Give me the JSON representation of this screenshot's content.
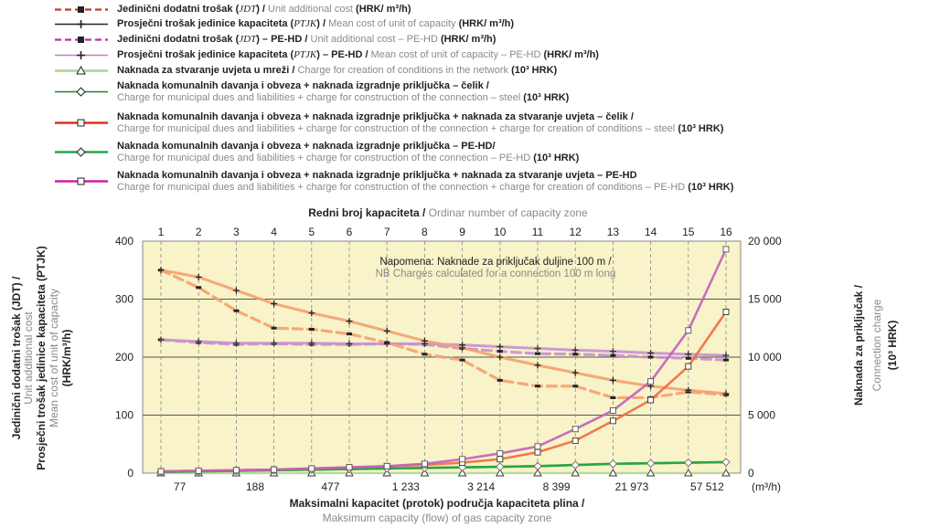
{
  "legend": [
    {
      "id": "jdt-steel",
      "bold": "Jedinični dodatni trošak (",
      "it": "JDT",
      "bold2": ") / ",
      "grey": "Unit additional cost ",
      "unit": "(HRK/ m³/h)",
      "color": "#c0392b",
      "dash": true,
      "marker": "square"
    },
    {
      "id": "ptjk-steel",
      "bold": "Prosječni trošak jedinice kapaciteta (",
      "it": "PTJK",
      "bold2": ") / ",
      "grey": "Mean cost of unit of capacity ",
      "unit": "(HRK/ m³/h)",
      "color": "#222222",
      "dash": false,
      "marker": "plus"
    },
    {
      "id": "jdt-pehd",
      "bold": "Jedinični dodatni trošak (",
      "it": "JDT",
      "bold2": ") – PE-HD / ",
      "grey": "Unit additional cost – PE-HD ",
      "unit": "(HRK/ m³/h)",
      "color": "#c0309a",
      "dash": true,
      "marker": "square"
    },
    {
      "id": "ptjk-pehd",
      "bold": "Prosječni trošak jedinice kapaciteta (",
      "it": "PTJK",
      "bold2": ") – PE-HD / ",
      "grey": "Mean cost of unit of capacity – PE-HD ",
      "unit": "(HRK/ m³/h)",
      "color": "#c080c0",
      "dash": false,
      "marker": "plus"
    },
    {
      "id": "naknada-uvjeti",
      "bold": "Naknada za stvaranje uvjeta u mreži / ",
      "grey": "Charge for creation of conditions in the network ",
      "unit": "(10³ HRK)",
      "color": "#b8dca0",
      "dash": false,
      "marker": "triangle"
    },
    {
      "id": "komunalne-celik",
      "line1": "Naknada komunalnih davanja i obveza + naknada izgradnje priključka – čelik /",
      "line2": "Charge for municipal dues and liabilities + charge for construction of the connection – steel ",
      "unit": "(10³ HRK)",
      "color": "#2e7d32",
      "marker": "diamond"
    },
    {
      "id": "komunalne-uvjeti-celik",
      "line1": "Naknada komunalnih davanja i obveza + naknada izgradnje priključka + naknada za stvaranje uvjeta – čelik /",
      "line2": "Charge for municipal dues and liabilities + charge for construction of the connection + charge for creation of conditions – steel ",
      "unit": "(10³ HRK)",
      "color": "#e0301e",
      "marker": "square"
    },
    {
      "id": "komunalne-pehd",
      "line1": "Naknada komunalnih davanja i obveza + naknada izgradnje priključka – PE-HD/",
      "line2": "Charge for municipal dues and liabilities + charge for construction of the connection – PE-HD ",
      "unit": "(10³ HRK)",
      "color": "#22aa44",
      "marker": "diamond"
    },
    {
      "id": "komunalne-uvjeti-pehd",
      "line1": "Naknada komunalnih davanja i obveza + naknada izgradnje priključka + naknada za stvaranje uvjeta – PE-HD",
      "line2": "Charge for municipal dues and liabilities + charge for construction of the connection + charge for creation of conditions – PE-HD ",
      "unit": "(10³ HRK)",
      "color": "#d020a0",
      "marker": "square"
    }
  ],
  "axes": {
    "top_title_bold": "Redni broj kapaciteta / ",
    "top_title_grey": "Ordinar number of capacity zone",
    "bottom_title": "Maksimalni kapacitet (protok) područja kapaciteta plina /",
    "bottom_title_grey": "Maksimum capacity (flow) of gas capacity zone",
    "bottom_unit": "(m³/h)",
    "left_line1": "Jedinični dodatni trošak (JDT) /",
    "left_line2": "Unit additional cost",
    "left_line3": "Prosječni trošak jedinice kapaciteta (PTJK)",
    "left_line4": "Mean cost of unit of capacity",
    "left_line5": "(HRK/m³/h)",
    "right_line1": "Naknada za priključak /",
    "right_line2": "Connection charge",
    "right_line3": "(10³ HRK)"
  },
  "note": {
    "line1": "Napomena: Naknade za priključak duljine 100 m /",
    "line2": "NB Charges calculated for a connection 100 m long"
  },
  "chart_data": {
    "type": "line",
    "x": [
      1,
      2,
      3,
      4,
      5,
      6,
      7,
      8,
      9,
      10,
      11,
      12,
      13,
      14,
      15,
      16
    ],
    "top_ticks": [
      "1",
      "2",
      "3",
      "4",
      "5",
      "6",
      "7",
      "8",
      "9",
      "10",
      "11",
      "12",
      "13",
      "14",
      "15",
      "16"
    ],
    "bottom_ticks": [
      "77",
      "188",
      "477",
      "1 233",
      "3 214",
      "8 399",
      "21 973",
      "57 512"
    ],
    "left_ticks": [
      "0",
      "100",
      "200",
      "300",
      "400"
    ],
    "right_ticks": [
      "0",
      "5 000",
      "10 000",
      "15 000",
      "20 000"
    ],
    "ylim_left": [
      0,
      400
    ],
    "ylim_right": [
      0,
      20000
    ],
    "series": [
      {
        "name": "Jedinični dodatni trošak (JDT)",
        "axis": "left",
        "color": "#f4a070",
        "values": [
          350,
          320,
          280,
          250,
          248,
          240,
          225,
          205,
          195,
          160,
          150,
          150,
          130,
          130,
          140,
          135
        ]
      },
      {
        "name": "Prosječni trošak jedinice kapaciteta (PTJK)",
        "axis": "left",
        "color": "#f4a070",
        "values": [
          350,
          338,
          315,
          292,
          276,
          262,
          245,
          228,
          216,
          200,
          186,
          173,
          160,
          150,
          143,
          137
        ]
      },
      {
        "name": "Jedinični dodatni trošak (JDT) – PE-HD",
        "axis": "left",
        "color": "#c890d0",
        "values": [
          230,
          225,
          222,
          223,
          222,
          222,
          223,
          222,
          215,
          210,
          206,
          205,
          203,
          200,
          198,
          195
        ]
      },
      {
        "name": "Prosječni trošak jedinice kapaciteta (PTJK) – PE-HD",
        "axis": "left",
        "color": "#c890d0",
        "values": [
          230,
          227,
          224,
          224,
          224,
          223,
          223,
          223,
          221,
          218,
          215,
          212,
          210,
          207,
          205,
          203
        ]
      },
      {
        "name": "Naknada za stvaranje uvjeta u mreži",
        "axis": "right",
        "color": "#b8dca0",
        "values": [
          0,
          0,
          0,
          0,
          0,
          0,
          0,
          0,
          0,
          0,
          0,
          0,
          0,
          0,
          0,
          0
        ]
      },
      {
        "name": "Naknada komunalnih davanja i obveza + naknada izgradnje priključka – čelik",
        "axis": "right",
        "color": "#2e7d32",
        "values": [
          100,
          150,
          200,
          250,
          300,
          350,
          400,
          450,
          500,
          550,
          600,
          700,
          800,
          850,
          900,
          950
        ]
      },
      {
        "name": "Naknada komunalnih davanja i obveza + naknada izgradnje priključka + naknada za stvaranje uvjeta – čelik",
        "axis": "right",
        "color": "#f26a40",
        "values": [
          150,
          200,
          250,
          300,
          400,
          500,
          600,
          700,
          900,
          1200,
          1800,
          2800,
          4500,
          6300,
          9200,
          13900
        ]
      },
      {
        "name": "Naknada komunalnih davanja i obveza + naknada izgradnje priključka – PE-HD",
        "axis": "right",
        "color": "#22aa44",
        "values": [
          100,
          150,
          200,
          250,
          300,
          350,
          400,
          450,
          500,
          550,
          600,
          700,
          800,
          850,
          900,
          950
        ]
      },
      {
        "name": "Naknada komunalnih davanja i obveza + naknada izgradnje priključka + naknada za stvaranje uvjeta – PE-HD",
        "axis": "right",
        "color": "#c060c0",
        "values": [
          150,
          200,
          250,
          300,
          400,
          500,
          600,
          800,
          1200,
          1700,
          2300,
          3800,
          5400,
          7900,
          12300,
          19300
        ]
      }
    ]
  }
}
